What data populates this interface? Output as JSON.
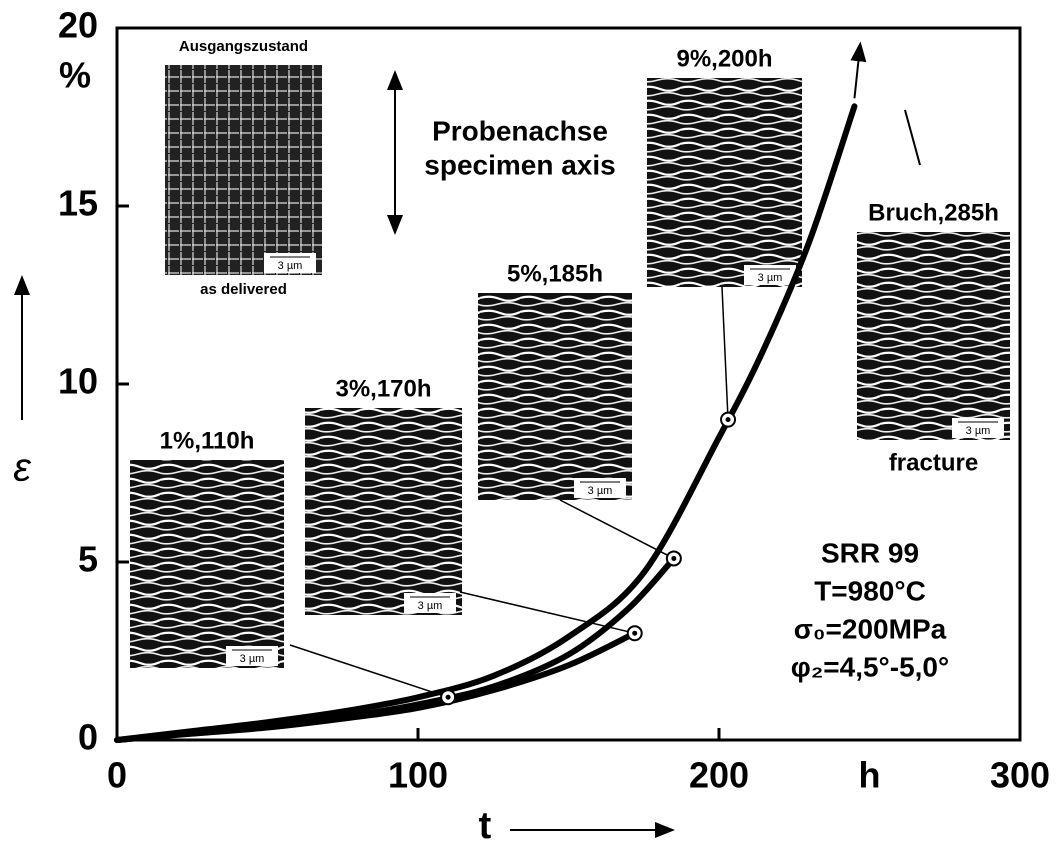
{
  "chart_data": {
    "type": "line",
    "x_label": "t",
    "y_label": "ε",
    "x_unit": "h",
    "y_unit": "%",
    "xlim": [
      0,
      300
    ],
    "xticks": [
      0,
      100,
      200,
      300
    ],
    "ylim": [
      0,
      20
    ],
    "yticks": [
      0,
      5,
      10,
      15,
      20
    ],
    "series": [
      {
        "color": "#000000",
        "x": [
          0,
          25,
          50,
          75,
          100,
          125,
          150,
          175,
          200,
          215,
          230,
          245
        ],
        "values": [
          0,
          0.25,
          0.5,
          0.8,
          1.2,
          1.8,
          2.9,
          4.7,
          8.5,
          11,
          14,
          17.8
        ]
      },
      {
        "color": "#000000",
        "x": [
          0,
          25,
          50,
          75,
          100,
          125,
          150,
          170,
          185
        ],
        "values": [
          0,
          0.2,
          0.4,
          0.65,
          1.0,
          1.5,
          2.4,
          3.7,
          5.1
        ]
      },
      {
        "color": "#000000",
        "x": [
          0,
          25,
          50,
          75,
          100,
          125,
          150,
          172
        ],
        "values": [
          0,
          0.18,
          0.35,
          0.6,
          0.9,
          1.4,
          2.1,
          3.0
        ]
      }
    ],
    "points": {
      "x": [
        110,
        172,
        185,
        203
      ],
      "values": [
        1.2,
        3.0,
        5.1,
        9.0
      ]
    },
    "insets": [
      {
        "label": "Ausgangszustand",
        "caption": "as delivered",
        "scale": "3 µm"
      },
      {
        "label": "1%,110h",
        "scale": "3 µm"
      },
      {
        "label": "3%,170h",
        "scale": "3 µm"
      },
      {
        "label": "5%,185h",
        "scale": "3 µm"
      },
      {
        "label": "9%,200h",
        "scale": "3 µm"
      },
      {
        "label": "Bruch,285h",
        "caption": "fracture",
        "scale": "3 µm"
      }
    ],
    "axis_note": [
      "Probenachse",
      "specimen axis"
    ],
    "conditions": [
      "SRR 99",
      "T=980°C",
      "σ₀=200MPa",
      "φ₂=4,5°-5,0°"
    ]
  }
}
